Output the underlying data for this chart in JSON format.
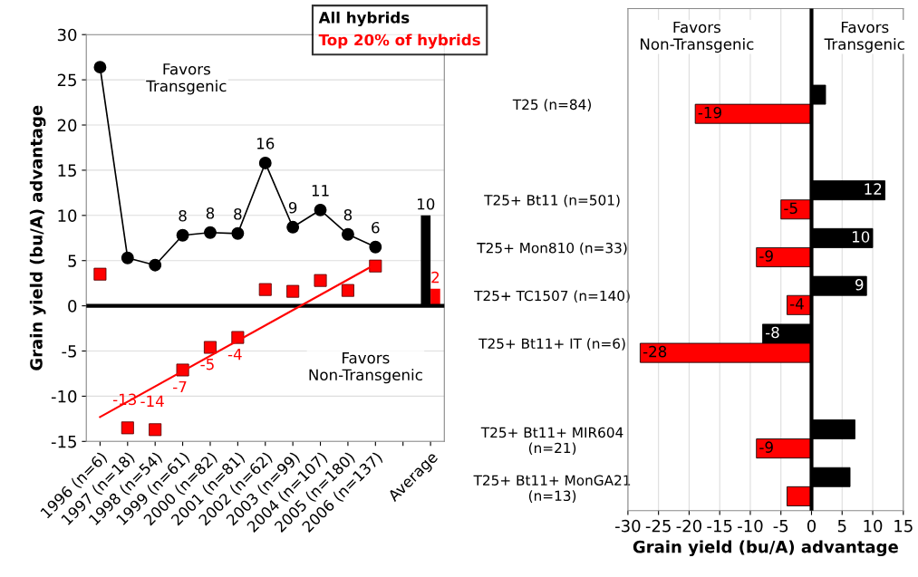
{
  "chart_data": [
    {
      "type": "line",
      "ylabel": "Grain yield (bu/A) advantage",
      "categories": [
        "1996 (n=6)",
        "1997 (n=18)",
        "1998 (n=54)",
        "1999 (n=61)",
        "2000 (n=82)",
        "2001 (n=81)",
        "2002 (n=62)",
        "2003 (n=99)",
        "2004 (n=107)",
        "2005 (n=180)",
        "2006 (n=137)",
        null,
        "Average"
      ],
      "series": [
        {
          "name": "All hybrids",
          "type": "line",
          "color": "#000000",
          "marker": "circle",
          "values": [
            26.4,
            5.3,
            4.5,
            7.8,
            8.1,
            8.0,
            15.8,
            8.7,
            10.6,
            7.9,
            6.5,
            null,
            null
          ],
          "value_labels": [
            null,
            null,
            null,
            "8",
            "8",
            "8",
            "16",
            "9",
            "11",
            "8",
            "6",
            null,
            null
          ]
        },
        {
          "name": "Top 20% of hybrids",
          "type": "scatter",
          "color": "#ff0000",
          "marker": "square",
          "values": [
            3.5,
            -13.5,
            -13.7,
            -7.1,
            -4.6,
            -3.5,
            1.8,
            1.6,
            2.8,
            1.7,
            4.4,
            null,
            null
          ],
          "value_labels": [
            null,
            "-13",
            "-14",
            "-7",
            "-5",
            "-4",
            null,
            null,
            null,
            null,
            null,
            null,
            null
          ]
        },
        {
          "type": "line",
          "color": "#ff0000",
          "marker": "none",
          "x": [
            "1996 (n=6)",
            "2006 (n=137)"
          ],
          "values": [
            -12.3,
            4.6
          ]
        },
        {
          "type": "bar",
          "color": "#000000",
          "values": [
            null,
            null,
            null,
            null,
            null,
            null,
            null,
            null,
            null,
            null,
            null,
            null,
            10
          ],
          "value_labels": [
            null,
            null,
            null,
            null,
            null,
            null,
            null,
            null,
            null,
            null,
            null,
            null,
            "10"
          ]
        },
        {
          "type": "bar",
          "color": "#ff0000",
          "values": [
            null,
            null,
            null,
            null,
            null,
            null,
            null,
            null,
            null,
            null,
            null,
            null,
            1.9
          ],
          "value_labels": [
            null,
            null,
            null,
            null,
            null,
            null,
            null,
            null,
            null,
            null,
            null,
            null,
            "2"
          ]
        }
      ],
      "ylim": [
        -15,
        30
      ],
      "yticks": [
        -15,
        -10,
        -5,
        0,
        5,
        10,
        15,
        20,
        25,
        30
      ],
      "ref_lines": [
        {
          "axis": "y",
          "value": 0,
          "color": "#000000"
        }
      ],
      "annotations": [
        "Favors\nTransgenic",
        "Favors\nNon-Transgenic"
      ],
      "grid": "y",
      "legend": "top right"
    },
    {
      "type": "bar",
      "orientation": "horizontal",
      "xlabel": "Grain yield (bu/A) advantage",
      "categories": [
        "T25 (n=84)",
        null,
        "T25+ Bt11 (n=501)",
        "T25+ Mon810 (n=33)",
        "T25+ TC1507 (n=140)",
        "T25+ Bt11+ IT (n=6)",
        null,
        "T25+ Bt11+ MIR604\n(n=21)",
        "T25+ Bt11+ MonGA21\n(n=13)"
      ],
      "series": [
        {
          "color": "#000000",
          "values": [
            2.3,
            null,
            12,
            10,
            9,
            -8,
            null,
            7.1,
            6.3
          ],
          "value_labels": [
            null,
            null,
            "12",
            "10",
            "9",
            "-8",
            null,
            null,
            null
          ]
        },
        {
          "color": "#ff0000",
          "values": [
            -19,
            null,
            -5,
            -9,
            -4,
            -28,
            null,
            -9,
            -4.0
          ],
          "value_labels": [
            "-19",
            null,
            "-5",
            "-9",
            "-4",
            "-28",
            null,
            "-9",
            null
          ]
        }
      ],
      "xlim": [
        -30,
        15
      ],
      "xticks": [
        -30,
        -25,
        -20,
        -15,
        -10,
        -5,
        0,
        5,
        10,
        15
      ],
      "ref_lines": [
        {
          "axis": "x",
          "value": 0,
          "color": "#000000"
        }
      ],
      "annotations": [
        "Favors\nNon-Transgenic",
        "Favors\nTransgenic"
      ],
      "grid": "x",
      "legend": false
    }
  ]
}
